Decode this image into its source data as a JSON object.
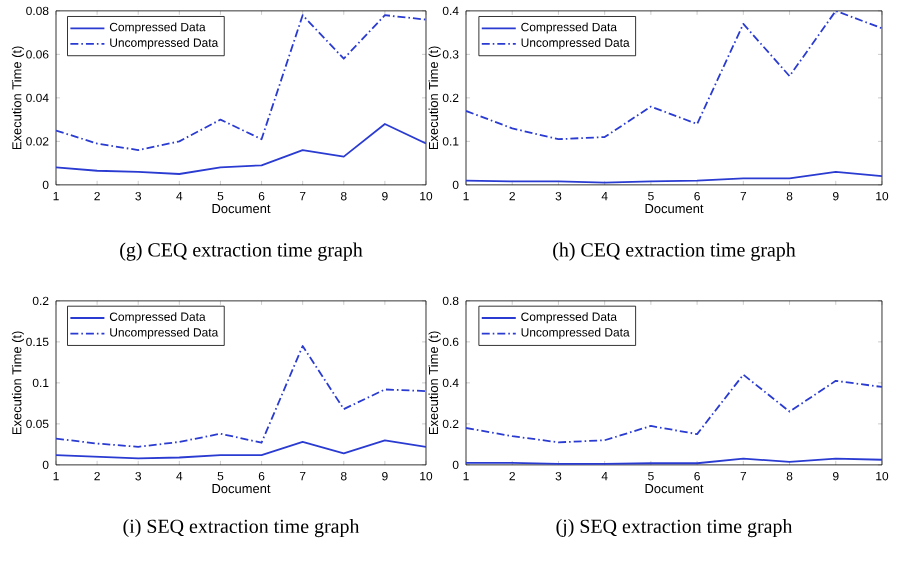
{
  "chart_data": [
    {
      "type": "line",
      "title": "(g) CEQ extraction time graph",
      "xlabel": "Document",
      "ylabel": "Execution Time (t)",
      "x": [
        1,
        2,
        3,
        4,
        5,
        6,
        7,
        8,
        9,
        10
      ],
      "xlim": [
        1,
        10
      ],
      "xticks": [
        1,
        2,
        3,
        4,
        5,
        6,
        7,
        8,
        9,
        10
      ],
      "ylim": [
        0,
        0.08
      ],
      "yticks": [
        0,
        0.02,
        0.04,
        0.06,
        0.08
      ],
      "legend": "top left",
      "grid": false,
      "marker": "none",
      "series": [
        {
          "name": "Compressed Data",
          "color": "#2a3bd1",
          "line_style": "solid",
          "values": [
            0.008,
            0.0065,
            0.006,
            0.005,
            0.008,
            0.009,
            0.016,
            0.013,
            0.028,
            0.019
          ]
        },
        {
          "name": "Uncompressed Data",
          "color": "#2a3bd1",
          "line_style": "dash-dot",
          "values": [
            0.025,
            0.019,
            0.016,
            0.02,
            0.03,
            0.021,
            0.078,
            0.058,
            0.078,
            0.076
          ]
        }
      ]
    },
    {
      "type": "line",
      "title": "(h) CEQ extraction time graph",
      "xlabel": "Document",
      "ylabel": "Execution Time (t)",
      "x": [
        1,
        2,
        3,
        4,
        5,
        6,
        7,
        8,
        9,
        10
      ],
      "xlim": [
        1,
        10
      ],
      "xticks": [
        1,
        2,
        3,
        4,
        5,
        6,
        7,
        8,
        9,
        10
      ],
      "ylim": [
        0,
        0.4
      ],
      "yticks": [
        0,
        0.1,
        0.2,
        0.3,
        0.4
      ],
      "legend": "top left",
      "grid": false,
      "marker": "none",
      "series": [
        {
          "name": "Compressed Data",
          "color": "#2a3bd1",
          "line_style": "solid",
          "values": [
            0.01,
            0.008,
            0.008,
            0.005,
            0.008,
            0.01,
            0.015,
            0.015,
            0.03,
            0.02
          ]
        },
        {
          "name": "Uncompressed Data",
          "color": "#2a3bd1",
          "line_style": "dash-dot",
          "values": [
            0.17,
            0.13,
            0.105,
            0.11,
            0.18,
            0.14,
            0.37,
            0.25,
            0.4,
            0.36
          ]
        }
      ]
    },
    {
      "type": "line",
      "title": "(i) SEQ extraction time graph",
      "xlabel": "Document",
      "ylabel": "Execution Time (t)",
      "x": [
        1,
        2,
        3,
        4,
        5,
        6,
        7,
        8,
        9,
        10
      ],
      "xlim": [
        1,
        10
      ],
      "xticks": [
        1,
        2,
        3,
        4,
        5,
        6,
        7,
        8,
        9,
        10
      ],
      "ylim": [
        0,
        0.2
      ],
      "yticks": [
        0,
        0.05,
        0.1,
        0.15,
        0.2
      ],
      "legend": "top left",
      "grid": false,
      "marker": "none",
      "series": [
        {
          "name": "Compressed Data",
          "color": "#2a3bd1",
          "line_style": "solid",
          "values": [
            0.012,
            0.01,
            0.008,
            0.009,
            0.012,
            0.012,
            0.028,
            0.014,
            0.03,
            0.022
          ]
        },
        {
          "name": "Uncompressed Data",
          "color": "#2a3bd1",
          "line_style": "dash-dot",
          "values": [
            0.032,
            0.026,
            0.022,
            0.028,
            0.038,
            0.027,
            0.145,
            0.068,
            0.092,
            0.09
          ]
        }
      ]
    },
    {
      "type": "line",
      "title": "(j) SEQ extraction time graph",
      "xlabel": "Document",
      "ylabel": "Execution Time (t)",
      "x": [
        1,
        2,
        3,
        4,
        5,
        6,
        7,
        8,
        9,
        10
      ],
      "xlim": [
        1,
        10
      ],
      "xticks": [
        1,
        2,
        3,
        4,
        5,
        6,
        7,
        8,
        9,
        10
      ],
      "ylim": [
        0,
        0.8
      ],
      "yticks": [
        0,
        0.2,
        0.4,
        0.6,
        0.8
      ],
      "legend": "top left",
      "grid": false,
      "marker": "none",
      "series": [
        {
          "name": "Compressed Data",
          "color": "#2a3bd1",
          "line_style": "solid",
          "values": [
            0.01,
            0.01,
            0.005,
            0.005,
            0.008,
            0.008,
            0.03,
            0.015,
            0.03,
            0.025
          ]
        },
        {
          "name": "Uncompressed Data",
          "color": "#2a3bd1",
          "line_style": "dash-dot",
          "values": [
            0.18,
            0.14,
            0.11,
            0.12,
            0.19,
            0.15,
            0.44,
            0.26,
            0.41,
            0.38
          ]
        }
      ]
    }
  ]
}
